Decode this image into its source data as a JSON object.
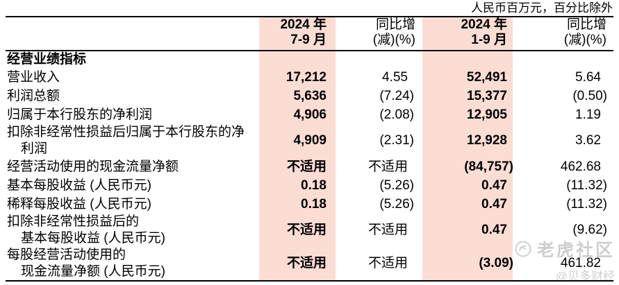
{
  "note": "人民币百万元，百分比除外",
  "table": {
    "columns": [
      {
        "label": "2024 年\n7-9 月",
        "highlight": true
      },
      {
        "label": "同比增\n(减)(%)",
        "highlight": false
      },
      {
        "label": "2024 年\n1-9 月",
        "highlight": true
      },
      {
        "label": "同比增\n(减)(%)",
        "highlight": false
      }
    ],
    "section": "经营业绩指标",
    "rows": [
      {
        "label": "营业收入",
        "values": [
          "17,212",
          "4.55",
          "52,491",
          "5.64"
        ]
      },
      {
        "label": "利润总额",
        "values": [
          "5,636",
          "(7.24)",
          "15,377",
          "(0.50)"
        ]
      },
      {
        "label": "归属于本行股东的净利润",
        "values": [
          "4,906",
          "(2.08)",
          "12,905",
          "1.19"
        ]
      },
      {
        "label": "扣除非经常性损益后归属于本行股东的净\n利润",
        "values": [
          "4,909",
          "(2.31)",
          "12,928",
          "3.62"
        ]
      },
      {
        "label": "经营活动使用的现金流量净额",
        "values": [
          "不适用",
          "不适用",
          "(84,757)",
          "462.68"
        ]
      },
      {
        "label": "基本每股收益 (人民币元)",
        "values": [
          "0.18",
          "(5.26)",
          "0.47",
          "(11.32)"
        ]
      },
      {
        "label": "稀释每股收益 (人民币元)",
        "values": [
          "0.18",
          "(5.26)",
          "0.47",
          "(11.32)"
        ]
      },
      {
        "label": "扣除非经常性损益后的\n基本每股收益 (人民币元)",
        "values": [
          "不适用",
          "不适用",
          "0.47",
          "(9.62)"
        ]
      },
      {
        "label": "每股经营活动使用的\n现金流量净额 (人民币元)",
        "values": [
          "不适用",
          "不适用",
          "(3.09)",
          "461.82"
        ]
      }
    ]
  },
  "watermark": {
    "brand": "老虎社区",
    "handle": "@贝多财经"
  },
  "colors": {
    "highlight": "#fbddd3",
    "watermark": "#cfcfcf",
    "rule": "#000000"
  }
}
